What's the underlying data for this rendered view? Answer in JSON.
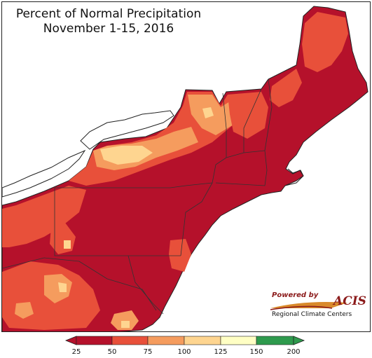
{
  "title": {
    "line1": "Percent of Normal Precipitation",
    "line2": "November 1-15, 2016"
  },
  "legend": {
    "ticks": [
      "25",
      "50",
      "75",
      "100",
      "125",
      "150",
      "200"
    ],
    "colors": [
      "#b5112b",
      "#e8503a",
      "#f59c5e",
      "#fed590",
      "#ffffc4",
      "#bfe38b",
      "#2e9a4d"
    ]
  },
  "logo": {
    "powered_by": "Powered by",
    "acis": "ACIS",
    "org": "Regional Climate Centers"
  },
  "map": {
    "region": "Northeast United States",
    "base_color": "#b5112b",
    "water_color": "#ffffff"
  }
}
